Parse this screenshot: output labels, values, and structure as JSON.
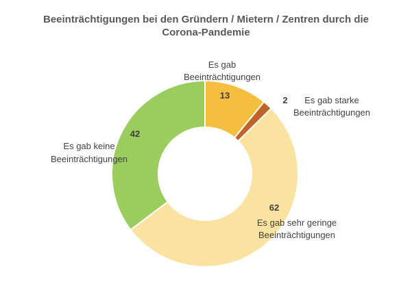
{
  "chart_data": {
    "type": "pie",
    "title_lines": [
      "Beeinträchtigungen bei den Gründern / Mietern / Zentren durch die",
      "Corona-Pandemie"
    ],
    "slices": [
      {
        "category_lines": [
          "Es gab",
          "Beeinträchtigungen"
        ],
        "value": 13,
        "color": "#F5BE41"
      },
      {
        "category_lines": [
          "Es gab starke",
          "Beeinträchtigungen"
        ],
        "value": 2,
        "color": "#C0642A"
      },
      {
        "category_lines": [
          "Es gab sehr geringe",
          "Beeinträchtigungen"
        ],
        "value": 62,
        "color": "#FAE3A0"
      },
      {
        "category_lines": [
          "Es gab keine",
          "Beeinträchtigungen"
        ],
        "value": 42,
        "color": "#9ACC5E"
      }
    ],
    "donut": true,
    "legend": "none"
  }
}
